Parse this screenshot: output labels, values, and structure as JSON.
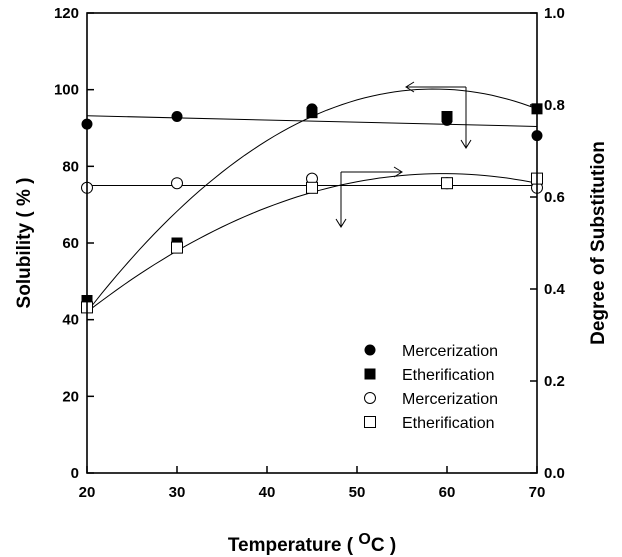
{
  "chart_data": {
    "type": "scatter",
    "xlabel": "Temperature ( ",
    "xlabel_superscript": "O",
    "xlabel_suffix": "C )",
    "ylabel_left": "Solubility ( % )",
    "ylabel_right": "Degree of Substitution",
    "xlim": [
      20,
      70
    ],
    "ylim_left": [
      0,
      120
    ],
    "ylim_right": [
      0.0,
      1.0
    ],
    "x_ticks": [
      "20",
      "30",
      "40",
      "50",
      "60",
      "70"
    ],
    "y_left_ticks": [
      "0",
      "20",
      "40",
      "60",
      "80",
      "100",
      "120"
    ],
    "y_right_ticks": [
      "0.0",
      "0.2",
      "0.4",
      "0.6",
      "0.8",
      "1.0"
    ],
    "grid": false,
    "legend_position": "bottom-right",
    "series": [
      {
        "name": "Mercerization",
        "marker": "filled-circle",
        "axis": "left",
        "x": [
          20,
          30,
          45,
          60,
          70
        ],
        "y": [
          91,
          93,
          95,
          92,
          88
        ],
        "fit": {
          "type": "linear",
          "y_start": 93.2,
          "y_end": 90.4
        }
      },
      {
        "name": "Etherification",
        "marker": "filled-square",
        "axis": "left",
        "x": [
          20,
          30,
          45,
          60,
          70
        ],
        "y": [
          45,
          60,
          94,
          93,
          95
        ],
        "fit": {
          "type": "quadratic",
          "y_start": 42.0,
          "y_mid": 93.0,
          "y_end": 95.0
        }
      },
      {
        "name": "Mercerization",
        "marker": "open-circle",
        "axis": "right",
        "x": [
          20,
          30,
          45,
          60,
          70
        ],
        "y": [
          0.62,
          0.63,
          0.64,
          0.63,
          0.62
        ],
        "fit": {
          "type": "linear",
          "y_start": 0.625,
          "y_end": 0.625
        }
      },
      {
        "name": "Etherification",
        "marker": "open-square",
        "axis": "right",
        "x": [
          20,
          30,
          45,
          60,
          70
        ],
        "y": [
          0.36,
          0.49,
          0.62,
          0.63,
          0.64
        ],
        "fit": {
          "type": "quadratic",
          "y_start": 0.35,
          "y_mid": 0.61,
          "y_end": 0.63
        }
      }
    ],
    "annotations": [
      {
        "kind": "arrow-pair",
        "points_to": "left-axis"
      },
      {
        "kind": "arrow-pair",
        "points_to": "right-axis"
      }
    ]
  }
}
